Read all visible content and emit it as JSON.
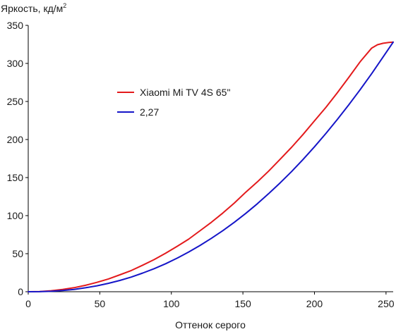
{
  "chart_data": {
    "type": "line",
    "title": "",
    "xlabel": "Оттенок серого",
    "ylabel": {
      "text": "Яркость, кд/м",
      "superscript": "2"
    },
    "xlim": [
      0,
      255
    ],
    "ylim": [
      0,
      350
    ],
    "xticks": [
      0,
      50,
      100,
      150,
      200,
      250
    ],
    "yticks": [
      0,
      50,
      100,
      150,
      200,
      250,
      300,
      350
    ],
    "grid": false,
    "legend": {
      "position": "left-center"
    },
    "series": [
      {
        "name": "Xiaomi Mi TV 4S 65\"",
        "color": "#e31a1c",
        "x": [
          0,
          8,
          16,
          24,
          32,
          40,
          48,
          56,
          64,
          72,
          80,
          88,
          96,
          104,
          112,
          120,
          128,
          136,
          144,
          152,
          160,
          168,
          176,
          184,
          192,
          200,
          208,
          216,
          224,
          232,
          240,
          244,
          248,
          252,
          255
        ],
        "y": [
          0,
          0.3,
          1.3,
          3.0,
          5.3,
          8.4,
          12.3,
          16.8,
          22.2,
          27.9,
          34.9,
          42.2,
          50.6,
          59.6,
          69.0,
          80.1,
          91.3,
          103.4,
          116.6,
          130.8,
          144.2,
          158.5,
          174.0,
          189.8,
          206.7,
          224.5,
          242.2,
          261.5,
          281.6,
          302.4,
          320.2,
          324.5,
          326.5,
          327.5,
          328.0
        ]
      },
      {
        "name": "2,27",
        "color": "#1515c8",
        "x": [
          0,
          8,
          16,
          24,
          32,
          40,
          48,
          56,
          64,
          72,
          80,
          88,
          96,
          104,
          112,
          120,
          128,
          136,
          144,
          152,
          160,
          168,
          176,
          184,
          192,
          200,
          208,
          216,
          224,
          232,
          240,
          248,
          255
        ],
        "y": [
          0,
          0.1,
          0.6,
          1.6,
          3.1,
          5.2,
          7.8,
          11.0,
          14.8,
          19.3,
          24.5,
          30.3,
          36.8,
          44.1,
          52.0,
          60.7,
          70.2,
          80.3,
          91.3,
          103.0,
          115.5,
          128.9,
          143.0,
          158.0,
          173.8,
          190.5,
          208.0,
          226.4,
          245.6,
          265.7,
          286.7,
          308.6,
          328.0
        ]
      }
    ]
  }
}
